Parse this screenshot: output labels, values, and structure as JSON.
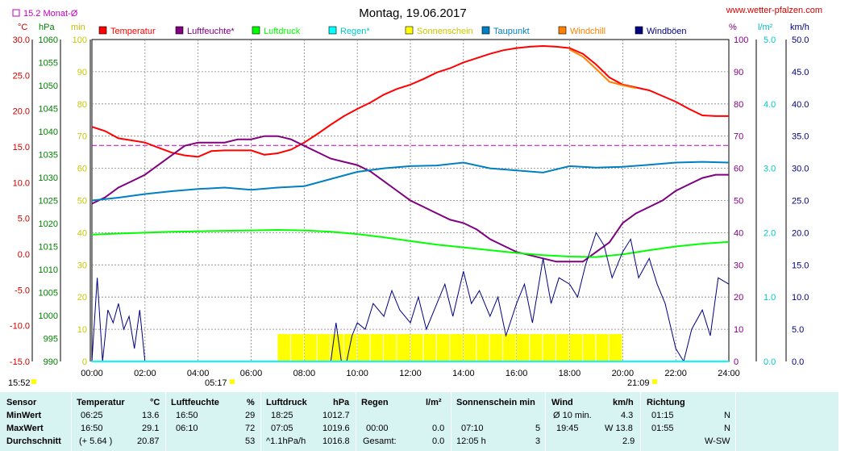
{
  "header": {
    "title": "Montag, 19.06.2017",
    "website": "www.wetter-pfalzen.com",
    "monthly_avg": "15.2 Monat-Ø"
  },
  "axis_units": {
    "temp": "°C",
    "pressure": "hPa",
    "minutes": "min",
    "percent": "%",
    "rain": "l/m²",
    "wind": "km/h"
  },
  "legend": [
    {
      "label": "Temperatur",
      "color": "#ff0000"
    },
    {
      "label": "Luftfeuchte*",
      "color": "#800080"
    },
    {
      "label": "Luftdruck",
      "color": "#00ff00"
    },
    {
      "label": "Regen*",
      "color": "#00ffff"
    },
    {
      "label": "Sonnenschein",
      "color": "#ffff00"
    },
    {
      "label": "Taupunkt",
      "color": "#0080c0"
    },
    {
      "label": "Windchill",
      "color": "#ff8000"
    },
    {
      "label": "Windböen",
      "color": "#000080"
    }
  ],
  "sun": {
    "sunrise": "05:17",
    "sunset": "21:09",
    "other_time": "15:52"
  },
  "chart_data": {
    "type": "line",
    "title": "Montag, 19.06.2017",
    "x_ticks": [
      "00:00",
      "02:00",
      "04:00",
      "06:00",
      "08:00",
      "10:00",
      "12:00",
      "14:00",
      "16:00",
      "18:00",
      "20:00",
      "22:00",
      "24:00"
    ],
    "x_range_hours": [
      0,
      24
    ],
    "axes": {
      "temp_c": {
        "range": [
          -15,
          30
        ],
        "ticks": [
          "30.0",
          "25.0",
          "20.0",
          "15.0",
          "10.0",
          "5.0",
          "0.0",
          "-5.0",
          "-10.0",
          "-15.0"
        ]
      },
      "pressure_hpa": {
        "range": [
          990,
          1060
        ],
        "ticks": [
          "1060",
          "1055",
          "1050",
          "1045",
          "1040",
          "1035",
          "1030",
          "1025",
          "1020",
          "1015",
          "1010",
          "1005",
          "1000",
          "995",
          "990"
        ]
      },
      "minutes": {
        "range": [
          0,
          100
        ],
        "ticks": [
          "100",
          "90",
          "80",
          "70",
          "60",
          "50",
          "40",
          "30",
          "20",
          "10",
          "0"
        ]
      },
      "percent": {
        "range": [
          0,
          100
        ],
        "ticks": [
          "100",
          "90",
          "80",
          "70",
          "60",
          "50",
          "40",
          "30",
          "20",
          "10",
          "0"
        ]
      },
      "rain_l_m2": {
        "range": [
          0,
          5
        ],
        "ticks": [
          "5.0",
          "4.0",
          "3.0",
          "2.0",
          "1.0",
          "0.0"
        ]
      },
      "wind_kmh": {
        "range": [
          0,
          50
        ],
        "ticks": [
          "50.0",
          "45.0",
          "40.0",
          "35.0",
          "30.0",
          "25.0",
          "20.0",
          "15.0",
          "10.0",
          "5.0",
          "0.0"
        ]
      }
    },
    "monthly_avg_temp": 15.2,
    "grid": true,
    "series": [
      {
        "name": "Temperatur",
        "unit": "°C",
        "color": "#ff0000",
        "x": [
          0,
          0.5,
          1,
          1.5,
          2,
          2.5,
          3,
          3.5,
          4,
          4.5,
          5,
          5.5,
          6,
          6.5,
          7,
          7.5,
          8,
          8.5,
          9,
          9.5,
          10,
          10.5,
          11,
          11.5,
          12,
          12.5,
          13,
          13.5,
          14,
          14.5,
          15,
          15.5,
          16,
          16.5,
          17,
          17.5,
          18,
          18.5,
          19,
          19.5,
          20,
          20.5,
          21,
          21.5,
          22,
          22.5,
          23,
          23.5,
          24
        ],
        "y": [
          17.8,
          17.2,
          16.2,
          15.9,
          15.6,
          14.9,
          14.2,
          13.8,
          13.6,
          14.4,
          14.5,
          14.5,
          14.5,
          13.9,
          14.1,
          14.6,
          15.6,
          16.8,
          18.1,
          19.3,
          20.3,
          21.2,
          22.3,
          23.1,
          23.7,
          24.5,
          25.4,
          26.0,
          26.8,
          27.4,
          28.0,
          28.5,
          28.8,
          29.0,
          29.1,
          29.0,
          28.8,
          28.0,
          26.5,
          24.7,
          23.7,
          23.3,
          22.9,
          22.1,
          21.3,
          20.3,
          19.4,
          19.3,
          19.3
        ]
      },
      {
        "name": "Windchill",
        "unit": "°C",
        "color": "#ff8000",
        "x": [
          18,
          18.5,
          19,
          19.5,
          20,
          20.5
        ],
        "y": [
          28.6,
          27.6,
          25.9,
          24.1,
          23.6,
          23.2
        ]
      },
      {
        "name": "Luftfeuchte*",
        "unit": "%",
        "color": "#800080",
        "x": [
          0,
          0.5,
          1,
          1.5,
          2,
          2.5,
          3,
          3.5,
          4,
          4.5,
          5,
          5.5,
          6,
          6.5,
          7,
          7.5,
          8,
          8.5,
          9,
          9.5,
          10,
          10.5,
          11,
          11.5,
          12,
          12.5,
          13,
          13.5,
          14,
          14.5,
          15,
          15.5,
          16,
          16.5,
          17,
          17.5,
          18,
          18.5,
          19,
          19.5,
          20,
          20.5,
          21,
          21.5,
          22,
          22.5,
          23,
          23.5,
          24
        ],
        "y": [
          49,
          51,
          54,
          56,
          58,
          61,
          64,
          67,
          68,
          68,
          68,
          69,
          69,
          70,
          70,
          69,
          67,
          65,
          63,
          62,
          61,
          59,
          56,
          53,
          50,
          48,
          46,
          44,
          43,
          41,
          38,
          36,
          34,
          33,
          32,
          31,
          31,
          31,
          34,
          37,
          43,
          46,
          48,
          50,
          53,
          55,
          57,
          58,
          58
        ]
      },
      {
        "name": "Luftdruck",
        "unit": "hPa",
        "color": "#00ff00",
        "x": [
          0,
          1,
          2,
          3,
          4,
          5,
          6,
          7,
          8,
          9,
          10,
          11,
          12,
          13,
          14,
          15,
          16,
          17,
          18,
          19,
          20,
          21,
          22,
          23,
          24
        ],
        "y": [
          1017.6,
          1017.8,
          1018.0,
          1018.2,
          1018.3,
          1018.4,
          1018.5,
          1018.6,
          1018.5,
          1018.2,
          1017.7,
          1017.0,
          1016.2,
          1015.4,
          1014.8,
          1014.2,
          1013.6,
          1013.1,
          1012.8,
          1012.7,
          1013.3,
          1014.2,
          1015.0,
          1015.6,
          1016.0
        ]
      },
      {
        "name": "Taupunkt",
        "unit": "°C",
        "color": "#0080c0",
        "x": [
          0,
          1,
          2,
          3,
          4,
          5,
          6,
          7,
          8,
          9,
          10,
          11,
          12,
          13,
          14,
          15,
          16,
          17,
          18,
          19,
          20,
          21,
          22,
          23,
          24
        ],
        "y": [
          7.5,
          7.9,
          8.4,
          8.8,
          9.1,
          9.3,
          9.0,
          9.3,
          9.5,
          10.5,
          11.5,
          12.0,
          12.3,
          12.4,
          12.8,
          12.0,
          11.7,
          11.4,
          12.3,
          12.1,
          12.2,
          12.5,
          12.8,
          12.9,
          12.8
        ]
      },
      {
        "name": "Windböen",
        "unit": "km/h",
        "color": "#000080",
        "x": [
          0,
          0.2,
          0.4,
          0.6,
          0.8,
          1,
          1.2,
          1.4,
          1.6,
          1.8,
          2,
          2.2,
          2.4,
          2.6,
          2.8,
          3,
          9,
          9.2,
          9.4,
          9.6,
          9.8,
          10,
          10.3,
          10.6,
          11,
          11.3,
          11.6,
          12,
          12.3,
          12.6,
          13,
          13.3,
          13.6,
          14,
          14.3,
          14.6,
          15,
          15.3,
          15.6,
          16,
          16.3,
          16.6,
          17,
          17.3,
          17.6,
          18,
          18.3,
          18.6,
          19,
          19.3,
          19.6,
          20,
          20.3,
          20.6,
          21,
          21.3,
          21.6,
          22,
          22.3,
          22.6,
          23,
          23.3,
          23.6,
          24
        ],
        "y": [
          0,
          13,
          0,
          8,
          6,
          9,
          5,
          7,
          2,
          8,
          0,
          0,
          0,
          0,
          0,
          0,
          0,
          6,
          0,
          0,
          4,
          6,
          5,
          9,
          7,
          11,
          8,
          6,
          10,
          5,
          9,
          12,
          7,
          14,
          9,
          11,
          7,
          10,
          4,
          9,
          12,
          6,
          16,
          9,
          13,
          12,
          10,
          15,
          20,
          18,
          13,
          17,
          19,
          13,
          16,
          12,
          9,
          2,
          0,
          5,
          8,
          4,
          13,
          12
        ]
      },
      {
        "name": "Sonnenschein",
        "unit": "min",
        "color": "#ffff00",
        "x": [
          7,
          7.5,
          8,
          8.5,
          9,
          9.5,
          10,
          10.5,
          11,
          11.5,
          12,
          12.5,
          13,
          13.5,
          14,
          14.5,
          15,
          15.5,
          16,
          16.5,
          17,
          17.5,
          18,
          18.5,
          19,
          19.5
        ],
        "y": [
          5,
          5,
          5,
          5,
          5,
          5,
          5,
          5,
          5,
          5,
          5,
          5,
          5,
          5,
          5,
          5,
          5,
          5,
          5,
          5,
          5,
          5,
          5,
          5,
          5,
          5
        ]
      },
      {
        "name": "Regen*",
        "unit": "l/m²",
        "color": "#00ffff",
        "x": [
          0,
          24
        ],
        "y": [
          0,
          0
        ]
      }
    ]
  },
  "table": {
    "headers": [
      "Sensor",
      "Temperatur",
      "°C",
      "Luftfeuchte",
      "%",
      "Luftdruck",
      "hPa",
      "Regen",
      "l/m²",
      "Sonnenschein min",
      "Wind",
      "km/h",
      "Richtung"
    ],
    "rows": [
      [
        "MinWert",
        "06:25",
        "13.6",
        "16:50",
        "29",
        "18:25",
        "1012.7",
        "",
        "",
        "",
        "Ø 10 min.",
        "4.3",
        "01:15",
        "N"
      ],
      [
        "MaxWert",
        "16:50",
        "29.1",
        "06:10",
        "72",
        "07:05",
        "1019.6",
        "00:00",
        "0.0",
        "07:10",
        "5",
        "19:45",
        "W 13.8",
        "01:55",
        "N"
      ],
      [
        "Durchschnitt",
        "(+ 5.64 )",
        "20.87",
        "",
        "53",
        "^1.1hPa/h",
        "1016.8",
        "Gesamt:",
        "0.0",
        "12:05 h",
        "3",
        "",
        "2.9",
        "",
        "W-SW"
      ]
    ]
  }
}
